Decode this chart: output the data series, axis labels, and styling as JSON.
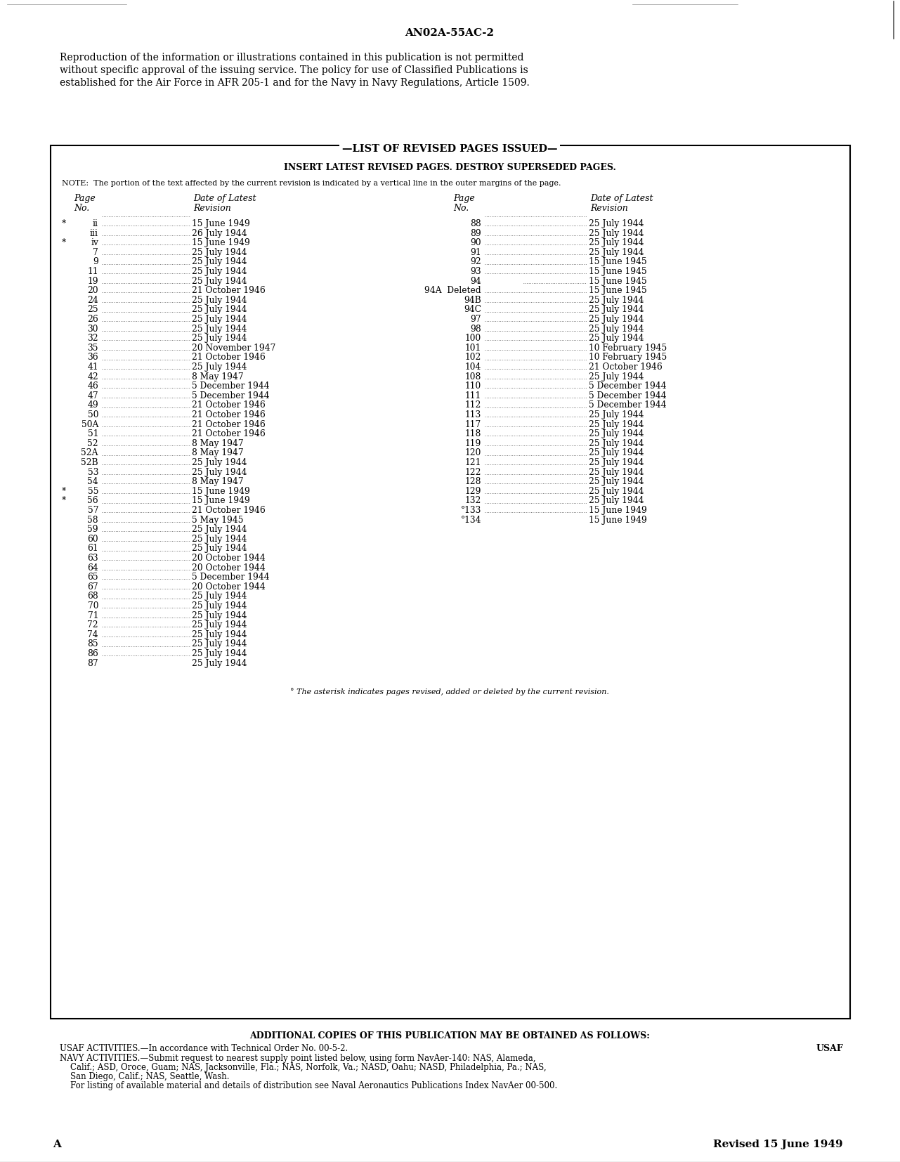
{
  "bg_color": "#ffffff",
  "top_label": "AN02A-55AC-2",
  "reproduction_text": "Reproduction of the information or illustrations contained in this publication is not permitted\nwithout specific approval of the issuing service. The policy for use of Classified Publications is\nestablished for the Air Force in AFR 205-1 and for the Navy in Navy Regulations, Article 1509.",
  "box_title": "—LIST OF REVISED PAGES ISSUED—",
  "box_subtitle": "INSERT LATEST REVISED PAGES. DESTROY SUPERSEDED PAGES.",
  "box_note": "NOTE:  The portion of the text affected by the current revision is indicated by a vertical line in the outer margins of the page.",
  "left_entries": [
    [
      "a",
      "ii",
      "15 June 1949"
    ],
    [
      " ",
      "iii",
      "26 July 1944"
    ],
    [
      "a",
      "iv",
      "15 June 1949"
    ],
    [
      " ",
      "7",
      "25 July 1944"
    ],
    [
      " ",
      "9",
      "25 July 1944"
    ],
    [
      " ",
      "11",
      "25 July 1944"
    ],
    [
      " ",
      "19",
      "25 July 1944"
    ],
    [
      " ",
      "20",
      "21 October 1946"
    ],
    [
      " ",
      "24",
      "25 July 1944"
    ],
    [
      " ",
      "25",
      "25 July 1944"
    ],
    [
      " ",
      "26",
      "25 July 1944"
    ],
    [
      " ",
      "30",
      "25 July 1944"
    ],
    [
      " ",
      "32",
      "25 July 1944"
    ],
    [
      " ",
      "35",
      "20 November 1947"
    ],
    [
      " ",
      "36",
      "21 October 1946"
    ],
    [
      " ",
      "41",
      "25 July 1944"
    ],
    [
      " ",
      "42",
      "8 May 1947"
    ],
    [
      " ",
      "46",
      "5 December 1944"
    ],
    [
      " ",
      "47",
      "5 December 1944"
    ],
    [
      " ",
      "49",
      "21 October 1946"
    ],
    [
      " ",
      "50",
      "21 October 1946"
    ],
    [
      " ",
      "50A",
      "21 October 1946"
    ],
    [
      " ",
      "51",
      "21 October 1946"
    ],
    [
      " ",
      "52",
      "8 May 1947"
    ],
    [
      " ",
      "52A",
      "8 May 1947"
    ],
    [
      " ",
      "52B",
      "25 July 1944"
    ],
    [
      " ",
      "53",
      "25 July 1944"
    ],
    [
      " ",
      "54",
      "8 May 1947"
    ],
    [
      "a",
      "55",
      "15 June 1949"
    ],
    [
      "a",
      "56",
      "15 June 1949"
    ],
    [
      " ",
      "57",
      "21 October 1946"
    ],
    [
      " ",
      "58",
      "5 May 1945"
    ],
    [
      " ",
      "59",
      "25 July 1944"
    ],
    [
      " ",
      "60",
      "25 July 1944"
    ],
    [
      " ",
      "61",
      "25 July 1944"
    ],
    [
      " ",
      "63",
      "20 October 1944"
    ],
    [
      " ",
      "64",
      "20 October 1944"
    ],
    [
      " ",
      "65",
      "5 December 1944"
    ],
    [
      " ",
      "67",
      "20 October 1944"
    ],
    [
      " ",
      "68",
      "25 July 1944"
    ],
    [
      " ",
      "70",
      "25 July 1944"
    ],
    [
      " ",
      "71",
      "25 July 1944"
    ],
    [
      " ",
      "72",
      "25 July 1944"
    ],
    [
      " ",
      "74",
      "25 July 1944"
    ],
    [
      " ",
      "85",
      "25 July 1944"
    ],
    [
      " ",
      "86",
      "25 July 1944"
    ],
    [
      " ",
      "87",
      "25 July 1944"
    ]
  ],
  "right_entries": [
    [
      " ",
      "88",
      "25 July 1944"
    ],
    [
      " ",
      "89",
      "25 July 1944"
    ],
    [
      " ",
      "90",
      "25 July 1944"
    ],
    [
      " ",
      "91",
      "25 July 1944"
    ],
    [
      " ",
      "92",
      "15 June 1945"
    ],
    [
      " ",
      "93",
      "15 June 1945"
    ],
    [
      " ",
      "94",
      "15 June 1945"
    ],
    [
      " ",
      "94A  Deleted",
      "15 June 1945"
    ],
    [
      " ",
      "94B",
      "25 July 1944"
    ],
    [
      " ",
      "94C",
      "25 July 1944"
    ],
    [
      " ",
      "97",
      "25 July 1944"
    ],
    [
      " ",
      "98",
      "25 July 1944"
    ],
    [
      " ",
      "100",
      "25 July 1944"
    ],
    [
      " ",
      "101",
      "10 February 1945"
    ],
    [
      " ",
      "102",
      "10 February 1945"
    ],
    [
      " ",
      "104",
      "21 October 1946"
    ],
    [
      " ",
      "108",
      "25 July 1944"
    ],
    [
      " ",
      "110",
      "5 December 1944"
    ],
    [
      " ",
      "111",
      "5 December 1944"
    ],
    [
      " ",
      "112",
      "5 December 1944"
    ],
    [
      " ",
      "113",
      "25 July 1944"
    ],
    [
      " ",
      "117",
      "25 July 1944"
    ],
    [
      " ",
      "118",
      "25 July 1944"
    ],
    [
      " ",
      "119",
      "25 July 1944"
    ],
    [
      " ",
      "120",
      "25 July 1944"
    ],
    [
      " ",
      "121",
      "25 July 1944"
    ],
    [
      " ",
      "122",
      "25 July 1944"
    ],
    [
      " ",
      "128",
      "25 July 1944"
    ],
    [
      " ",
      "129",
      "25 July 1944"
    ],
    [
      " ",
      "132",
      "25 July 1944"
    ],
    [
      "a",
      "°133",
      "15 June 1949"
    ],
    [
      "a",
      "°134",
      "15 June 1949"
    ]
  ],
  "asterisk_note": "° The asterisk indicates pages revised, added or deleted by the current revision.",
  "footer_bold": "ADDITIONAL COPIES OF THIS PUBLICATION MAY BE OBTAINED AS FOLLOWS:",
  "footer_usaf_line": "USAF ACTIVITIES.—In accordance with Technical Order No. 00-5-2.",
  "footer_usaf_right": "USAF",
  "footer_navy_lines": [
    "NAVY ACTIVITIES.—Submit request to nearest supply point listed below, using form NavAer-140: NAS, Alameda,",
    "    Calif.; ASD, Oroce, Guam; NAS, Jacksonville, Fla.; NAS, Norfolk, Va.; NASD, Oahu; NASD, Philadelphia, Pa.; NAS,",
    "    San Diego, Calif.; NAS, Seattle, Wash.",
    "    For listing of available material and details of distribution see Naval Aeronautics Publications Index NavAer 00-500."
  ],
  "bottom_left": "A",
  "bottom_right": "Revised 15 June 1949"
}
